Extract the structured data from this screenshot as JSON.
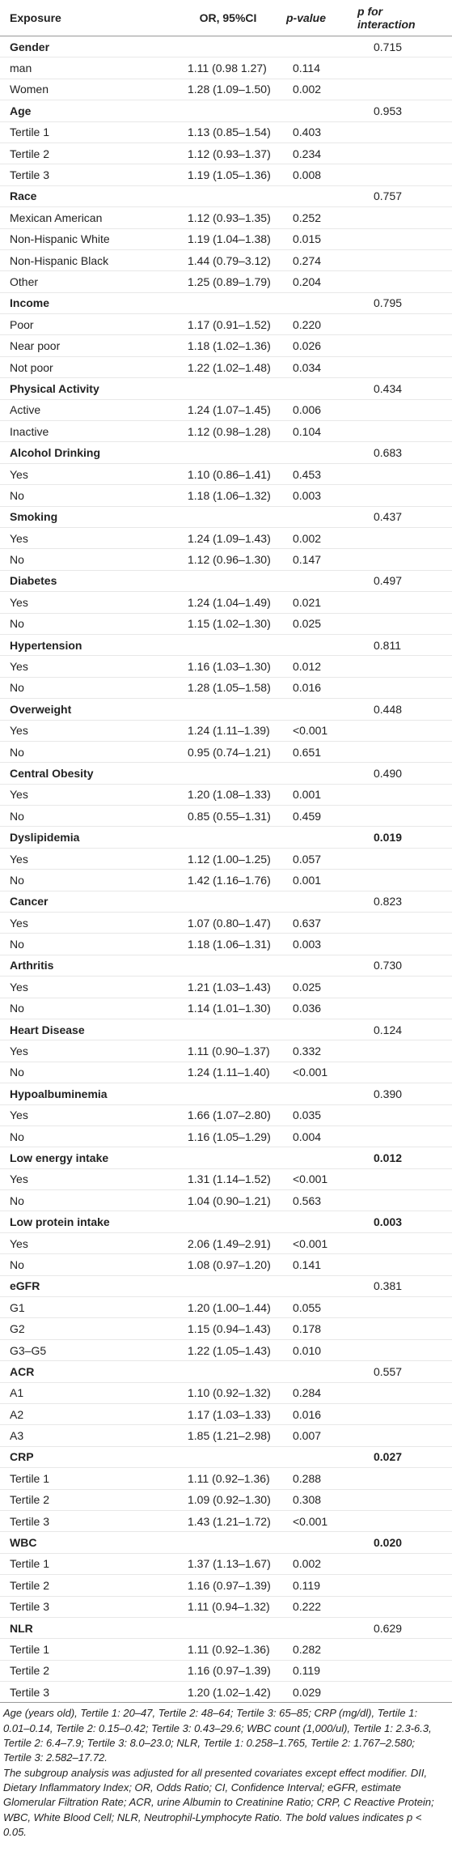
{
  "table": {
    "header": [
      "Exposure",
      "OR, 95%CI",
      "p-value",
      "p for interaction"
    ],
    "groups": [
      {
        "name": "Gender",
        "p_interaction": "0.715",
        "bold": false,
        "rows": [
          [
            "man",
            "1.11 (0.98 1.27)",
            "0.114"
          ],
          [
            "Women",
            "1.28 (1.09–1.50)",
            "0.002"
          ]
        ]
      },
      {
        "name": "Age",
        "p_interaction": "0.953",
        "bold": false,
        "rows": [
          [
            "Tertile 1",
            "1.13 (0.85–1.54)",
            "0.403"
          ],
          [
            "Tertile 2",
            "1.12 (0.93–1.37)",
            "0.234"
          ],
          [
            "Tertile 3",
            "1.19 (1.05–1.36)",
            "0.008"
          ]
        ]
      },
      {
        "name": "Race",
        "p_interaction": "0.757",
        "bold": false,
        "rows": [
          [
            "Mexican American",
            "1.12 (0.93–1.35)",
            "0.252"
          ],
          [
            "Non-Hispanic White",
            "1.19 (1.04–1.38)",
            "0.015"
          ],
          [
            "Non-Hispanic Black",
            "1.44 (0.79–3.12)",
            "0.274"
          ],
          [
            "Other",
            "1.25 (0.89–1.79)",
            "0.204"
          ]
        ]
      },
      {
        "name": "Income",
        "p_interaction": "0.795",
        "bold": false,
        "rows": [
          [
            "Poor",
            "1.17 (0.91–1.52)",
            "0.220"
          ],
          [
            "Near poor",
            "1.18 (1.02–1.36)",
            "0.026"
          ],
          [
            "Not poor",
            "1.22 (1.02–1.48)",
            "0.034"
          ]
        ]
      },
      {
        "name": "Physical Activity",
        "p_interaction": "0.434",
        "bold": false,
        "rows": [
          [
            "Active",
            "1.24 (1.07–1.45)",
            "0.006"
          ],
          [
            "Inactive",
            "1.12 (0.98–1.28)",
            "0.104"
          ]
        ]
      },
      {
        "name": "Alcohol Drinking",
        "p_interaction": "0.683",
        "bold": false,
        "rows": [
          [
            "Yes",
            "1.10 (0.86–1.41)",
            "0.453"
          ],
          [
            "No",
            "1.18 (1.06–1.32)",
            "0.003"
          ]
        ]
      },
      {
        "name": "Smoking",
        "p_interaction": "0.437",
        "bold": false,
        "rows": [
          [
            "Yes",
            "1.24 (1.09–1.43)",
            "0.002"
          ],
          [
            "No",
            "1.12 (0.96–1.30)",
            "0.147"
          ]
        ]
      },
      {
        "name": "Diabetes",
        "p_interaction": "0.497",
        "bold": false,
        "rows": [
          [
            "Yes",
            "1.24 (1.04–1.49)",
            "0.021"
          ],
          [
            "No",
            "1.15 (1.02–1.30)",
            "0.025"
          ]
        ]
      },
      {
        "name": "Hypertension",
        "p_interaction": "0.811",
        "bold": false,
        "rows": [
          [
            "Yes",
            "1.16 (1.03–1.30)",
            "0.012"
          ],
          [
            "No",
            "1.28 (1.05–1.58)",
            "0.016"
          ]
        ]
      },
      {
        "name": "Overweight",
        "p_interaction": "0.448",
        "bold": false,
        "rows": [
          [
            "Yes",
            "1.24 (1.11–1.39)",
            "<0.001"
          ],
          [
            "No",
            "0.95 (0.74–1.21)",
            "0.651"
          ]
        ]
      },
      {
        "name": "Central Obesity",
        "p_interaction": "0.490",
        "bold": false,
        "rows": [
          [
            "Yes",
            "1.20 (1.08–1.33)",
            "0.001"
          ],
          [
            "No",
            "0.85 (0.55–1.31)",
            "0.459"
          ]
        ]
      },
      {
        "name": "Dyslipidemia",
        "p_interaction": "0.019",
        "bold": true,
        "rows": [
          [
            "Yes",
            "1.12 (1.00–1.25)",
            "0.057"
          ],
          [
            "No",
            "1.42 (1.16–1.76)",
            "0.001"
          ]
        ]
      },
      {
        "name": "Cancer",
        "p_interaction": "0.823",
        "bold": false,
        "rows": [
          [
            "Yes",
            "1.07 (0.80–1.47)",
            "0.637"
          ],
          [
            "No",
            "1.18 (1.06–1.31)",
            "0.003"
          ]
        ]
      },
      {
        "name": "Arthritis",
        "p_interaction": "0.730",
        "bold": false,
        "rows": [
          [
            "Yes",
            "1.21 (1.03–1.43)",
            "0.025"
          ],
          [
            "No",
            "1.14 (1.01–1.30)",
            "0.036"
          ]
        ]
      },
      {
        "name": "Heart Disease",
        "p_interaction": "0.124",
        "bold": false,
        "rows": [
          [
            "Yes",
            "1.11 (0.90–1.37)",
            "0.332"
          ],
          [
            "No",
            "1.24 (1.11–1.40)",
            "<0.001"
          ]
        ]
      },
      {
        "name": "Hypoalbuminemia",
        "p_interaction": "0.390",
        "bold": false,
        "rows": [
          [
            "Yes",
            "1.66 (1.07–2.80)",
            "0.035"
          ],
          [
            "No",
            "1.16 (1.05–1.29)",
            "0.004"
          ]
        ]
      },
      {
        "name": "Low energy intake",
        "p_interaction": "0.012",
        "bold": true,
        "rows": [
          [
            "Yes",
            "1.31 (1.14–1.52)",
            "<0.001"
          ],
          [
            "No",
            "1.04 (0.90–1.21)",
            "0.563"
          ]
        ]
      },
      {
        "name": "Low protein intake",
        "p_interaction": "0.003",
        "bold": true,
        "rows": [
          [
            "Yes",
            "2.06 (1.49–2.91)",
            "<0.001"
          ],
          [
            "No",
            "1.08 (0.97–1.20)",
            "0.141"
          ]
        ]
      },
      {
        "name": "eGFR",
        "p_interaction": "0.381",
        "bold": false,
        "rows": [
          [
            "G1",
            "1.20 (1.00–1.44)",
            "0.055"
          ],
          [
            "G2",
            "1.15 (0.94–1.43)",
            "0.178"
          ],
          [
            "G3–G5",
            "1.22 (1.05–1.43)",
            "0.010"
          ]
        ]
      },
      {
        "name": "ACR",
        "p_interaction": "0.557",
        "bold": false,
        "rows": [
          [
            "A1",
            "1.10 (0.92–1.32)",
            "0.284"
          ],
          [
            "A2",
            "1.17 (1.03–1.33)",
            "0.016"
          ],
          [
            "A3",
            "1.85 (1.21–2.98)",
            "0.007"
          ]
        ]
      },
      {
        "name": "CRP",
        "p_interaction": "0.027",
        "bold": true,
        "rows": [
          [
            "Tertile 1",
            "1.11 (0.92–1.36)",
            "0.288"
          ],
          [
            "Tertile 2",
            "1.09 (0.92–1.30)",
            "0.308"
          ],
          [
            "Tertile 3",
            "1.43 (1.21–1.72)",
            "<0.001"
          ]
        ]
      },
      {
        "name": "WBC",
        "p_interaction": "0.020",
        "bold": true,
        "rows": [
          [
            "Tertile 1",
            "1.37 (1.13–1.67)",
            "0.002"
          ],
          [
            "Tertile 2",
            "1.16 (0.97–1.39)",
            "0.119"
          ],
          [
            "Tertile 3",
            "1.11 (0.94–1.32)",
            "0.222"
          ]
        ]
      },
      {
        "name": "NLR",
        "p_interaction": "0.629",
        "bold": false,
        "rows": [
          [
            "Tertile 1",
            "1.11 (0.92–1.36)",
            "0.282"
          ],
          [
            "Tertile 2",
            "1.16 (0.97–1.39)",
            "0.119"
          ],
          [
            "Tertile 3",
            "1.20 (1.02–1.42)",
            "0.029"
          ]
        ]
      }
    ],
    "footnote": [
      "Age (years old), Tertile 1: 20–47, Tertile 2: 48–64; Tertile 3: 65–85; CRP (mg/dl), Tertile 1: 0.01–0.14, Tertile 2: 0.15–0.42; Tertile 3: 0.43–29.6; WBC count (1,000/ul), Tertile 1: 2.3-6.3, Tertile 2: 6.4–7.9; Tertile 3: 8.0–23.0; NLR, Tertile 1: 0.258–1.765, Tertile 2: 1.767–2.580; Tertile 3: 2.582–17.72.",
      "The subgroup analysis was adjusted for all presented covariates except effect modifier. DII, Dietary Inflammatory Index; OR, Odds Ratio; CI, Confidence Interval; eGFR, estimate Glomerular Filtration Rate; ACR, urine Albumin to Creatinine Ratio; CRP, C Reactive Protein; WBC, White Blood Cell; NLR, Neutrophil-Lymphocyte Ratio. The bold values indicates p < 0.05."
    ]
  }
}
